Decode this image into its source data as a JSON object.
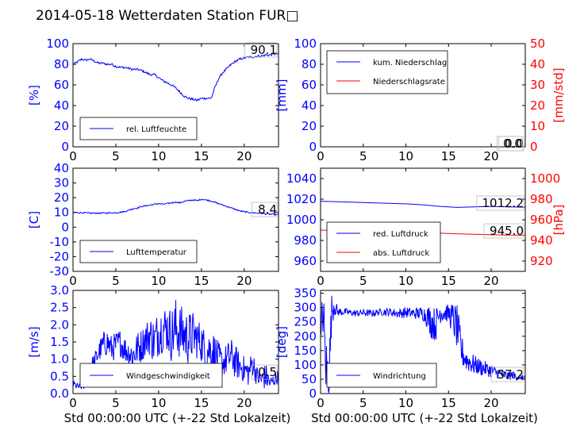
{
  "title": "2014-05-18 Wetterdaten Station FUR□",
  "colors": {
    "left_axis": "#0000ff",
    "right_axis": "#ff0000",
    "series_blue": "#0000ff",
    "series_red": "#ff0000"
  },
  "chart_data": [
    {
      "type": "line",
      "name": "humidity",
      "ylabel": "[%]",
      "ylim": [
        0,
        100
      ],
      "xlim": [
        0,
        24
      ],
      "xticks": [
        0,
        5,
        10,
        15,
        20
      ],
      "yticks": [
        0,
        20,
        40,
        60,
        80,
        100
      ],
      "legend": [
        "rel. Luftfeuchte"
      ],
      "legend_position": "lower-left",
      "value_label": "90.1",
      "series": [
        {
          "name": "rel. Luftfeuchte",
          "color": "blue",
          "x": [
            0,
            0.5,
            1,
            1.5,
            2,
            2.5,
            3,
            3.5,
            4,
            4.5,
            5,
            5.5,
            6,
            6.5,
            7,
            7.5,
            8,
            8.5,
            9,
            9.5,
            10,
            10.5,
            11,
            11.5,
            12,
            12.5,
            13,
            13.5,
            14,
            14.5,
            15,
            15.5,
            16,
            16.2,
            16.5,
            17,
            17.5,
            18,
            18.5,
            19,
            19.5,
            20,
            20.5,
            21,
            21.5,
            22,
            22.5,
            23,
            23.5,
            24
          ],
          "y": [
            80,
            82,
            85,
            84,
            85,
            83,
            81,
            81,
            80,
            80,
            78,
            77,
            77,
            76,
            75,
            75,
            74,
            72,
            70,
            70,
            67,
            64,
            62,
            60,
            57,
            53,
            49,
            47,
            46,
            45,
            47,
            47,
            47,
            48,
            56,
            66,
            72,
            76,
            80,
            83,
            85,
            86,
            87,
            87,
            88,
            88,
            89,
            89,
            90,
            90.1
          ]
        }
      ]
    },
    {
      "type": "line",
      "name": "precipitation",
      "ylabel": "[mm]",
      "ylabel_right": "[mm/std]",
      "ylim": [
        0,
        100
      ],
      "ylim_right": [
        0,
        50
      ],
      "xlim": [
        0,
        24
      ],
      "xticks": [
        0,
        5,
        10,
        15,
        20
      ],
      "yticks": [
        0,
        20,
        40,
        60,
        80,
        100
      ],
      "yticks_right": [
        0,
        10,
        20,
        30,
        40,
        50
      ],
      "legend": [
        "kum. Niederschlag",
        "Niederschlagsrate"
      ],
      "legend_position": "upper-left",
      "value_label": "0.0",
      "value_label_right": "0.0",
      "series": [
        {
          "name": "kum. Niederschlag",
          "color": "blue",
          "x": [
            0,
            24
          ],
          "y": [
            0,
            0
          ]
        },
        {
          "name": "Niederschlagsrate",
          "color": "red",
          "axis": "right",
          "x": [
            0,
            24
          ],
          "y": [
            0,
            0
          ]
        }
      ]
    },
    {
      "type": "line",
      "name": "temperature",
      "ylabel": "[C]",
      "ylim": [
        -30,
        40
      ],
      "xlim": [
        0,
        24
      ],
      "xticks": [
        0,
        5,
        10,
        15,
        20
      ],
      "yticks": [
        -30,
        -20,
        -10,
        0,
        10,
        20,
        30,
        40
      ],
      "legend": [
        "Lufttemperatur"
      ],
      "legend_position": "lower-left",
      "value_label": "8.4",
      "series": [
        {
          "name": "Lufttemperatur",
          "color": "blue",
          "x": [
            0,
            1,
            2,
            3,
            4,
            5,
            6,
            6.5,
            7,
            7.5,
            8,
            8.5,
            9,
            9.5,
            10,
            10.5,
            11,
            11.5,
            12,
            12.5,
            13,
            13.5,
            14,
            14.5,
            15,
            15.5,
            16,
            16.5,
            17,
            17.5,
            18,
            18.5,
            19,
            19.5,
            20,
            20.5,
            21,
            21.5,
            22,
            22.5,
            23,
            24
          ],
          "y": [
            10,
            9.8,
            9.5,
            9.5,
            9.6,
            9.8,
            10.5,
            11.5,
            12.5,
            13,
            14,
            14.5,
            15,
            15.5,
            16,
            15.5,
            16,
            16.5,
            17,
            16.5,
            17.5,
            18,
            18.5,
            18,
            19,
            18.5,
            18,
            17,
            16,
            15,
            14,
            13,
            12,
            11,
            10.5,
            10,
            9.8,
            9.6,
            9.4,
            9,
            8.8,
            8.4
          ]
        }
      ]
    },
    {
      "type": "line",
      "name": "pressure",
      "ylabel_right": "[hPa]",
      "ylim": [
        950,
        1050
      ],
      "ylim_right": [
        910,
        1010
      ],
      "xlim": [
        0,
        24
      ],
      "xticks": [
        0,
        5,
        10,
        15,
        20
      ],
      "yticks": [
        960,
        980,
        1000,
        1020,
        1040
      ],
      "yticks_right": [
        920,
        940,
        960,
        980,
        1000
      ],
      "legend": [
        "red. Luftdruck",
        "abs. Luftdruck"
      ],
      "legend_position": "lower-left",
      "value_label": "1012.2",
      "value_label_right": "945.0",
      "series": [
        {
          "name": "red. Luftdruck",
          "color": "blue",
          "x": [
            0,
            2,
            4,
            6,
            8,
            10,
            12,
            14,
            16,
            18,
            20,
            22,
            24
          ],
          "y": [
            1018,
            1017.5,
            1017,
            1016.5,
            1016,
            1015.5,
            1014.5,
            1013,
            1012,
            1012.5,
            1013,
            1012.5,
            1012.2
          ]
        },
        {
          "name": "abs. Luftdruck",
          "color": "red",
          "axis": "right",
          "x": [
            0,
            2,
            4,
            6,
            8,
            10,
            12,
            14,
            16,
            18,
            20,
            22,
            24
          ],
          "y": [
            950,
            949.5,
            949,
            948.8,
            948.5,
            948,
            947.5,
            947,
            946.5,
            946,
            945.5,
            945.2,
            945.0
          ]
        }
      ]
    },
    {
      "type": "line",
      "name": "windspeed",
      "xlabel": "Std 00:00:00 UTC (+-22 Std Lokalzeit)",
      "ylabel": "[m/s]",
      "ylim": [
        0,
        3.0
      ],
      "xlim": [
        0,
        24
      ],
      "xticks": [
        0,
        5,
        10,
        15,
        20
      ],
      "yticks": [
        0.0,
        0.5,
        1.0,
        1.5,
        2.0,
        2.5,
        3.0
      ],
      "legend": [
        "Windgeschwindigkeit"
      ],
      "legend_position": "lower-center",
      "value_label": "0.5",
      "series": [
        {
          "name": "Windgeschwindigkeit",
          "color": "blue",
          "noisy": true,
          "x": [
            0,
            0.5,
            1,
            1.5,
            2,
            2.5,
            3,
            3.5,
            4,
            4.5,
            5,
            5.5,
            6,
            6.5,
            7,
            7.5,
            8,
            8.5,
            9,
            9.5,
            10,
            10.5,
            11,
            11.5,
            12,
            12.5,
            13,
            13.5,
            14,
            14.5,
            15,
            15.5,
            16,
            16.5,
            17,
            17.5,
            18,
            18.5,
            19,
            19.5,
            20,
            20.5,
            21,
            21.5,
            22,
            22.5,
            23,
            23.5,
            24
          ],
          "y": [
            0.3,
            0.2,
            0.2,
            0.3,
            0.7,
            0.9,
            1.2,
            1.4,
            1.5,
            1.3,
            1.4,
            1.5,
            1.3,
            1.2,
            1.1,
            1.3,
            1.4,
            1.6,
            1.7,
            1.5,
            1.8,
            1.9,
            1.9,
            1.7,
            1.9,
            1.8,
            1.7,
            1.6,
            1.7,
            1.6,
            1.5,
            1.2,
            1.3,
            1.2,
            1.0,
            0.9,
            1.0,
            1.1,
            0.9,
            0.8,
            0.7,
            0.6,
            0.9,
            0.5,
            0.4,
            0.5,
            0.3,
            0.4,
            0.5
          ],
          "amp": [
            0.1,
            0.1,
            0.1,
            0.2,
            0.3,
            0.3,
            0.3,
            0.4,
            0.4,
            0.4,
            0.4,
            0.4,
            0.4,
            0.4,
            0.5,
            0.5,
            0.5,
            0.5,
            0.6,
            0.7,
            0.7,
            0.7,
            0.7,
            0.8,
            0.9,
            0.8,
            0.8,
            0.8,
            0.7,
            0.6,
            0.6,
            0.6,
            0.6,
            0.6,
            0.5,
            0.4,
            0.5,
            0.5,
            0.5,
            0.4,
            0.4,
            0.4,
            0.4,
            0.3,
            0.3,
            0.4,
            0.2,
            0.2,
            0.2
          ]
        }
      ]
    },
    {
      "type": "line",
      "name": "winddirection",
      "xlabel": "Std 00:00:00 UTC (+-22 Std Lokalzeit)",
      "ylabel": "[deg]",
      "ylim": [
        0,
        360
      ],
      "xlim": [
        0,
        24
      ],
      "xticks": [
        0,
        5,
        10,
        15,
        20
      ],
      "yticks": [
        0,
        50,
        100,
        150,
        200,
        250,
        300,
        350
      ],
      "legend": [
        "Windrichtung"
      ],
      "legend_position": "lower-left",
      "value_label": "57.2",
      "series": [
        {
          "name": "Windrichtung",
          "color": "blue",
          "noisy": true,
          "x": [
            0,
            0.3,
            0.6,
            1,
            1.3,
            1.6,
            2,
            3,
            4,
            5,
            6,
            7,
            8,
            9,
            10,
            11,
            12,
            12.5,
            13,
            13.5,
            14,
            15,
            15.5,
            16,
            16.5,
            17,
            17.5,
            18,
            18.5,
            19,
            19.5,
            20,
            20.5,
            21,
            21.5,
            22,
            22.5,
            23,
            23.5,
            24
          ],
          "y": [
            150,
            300,
            100,
            60,
            290,
            310,
            285,
            285,
            280,
            282,
            280,
            285,
            285,
            280,
            283,
            280,
            280,
            270,
            250,
            240,
            285,
            280,
            260,
            230,
            150,
            120,
            110,
            100,
            95,
            90,
            85,
            80,
            75,
            70,
            65,
            60,
            65,
            60,
            55,
            57.2
          ],
          "amp": [
            100,
            100,
            100,
            120,
            60,
            40,
            15,
            12,
            12,
            12,
            12,
            12,
            15,
            15,
            20,
            20,
            25,
            40,
            60,
            60,
            40,
            30,
            60,
            80,
            60,
            40,
            40,
            35,
            30,
            30,
            25,
            25,
            20,
            20,
            20,
            15,
            15,
            15,
            10,
            10
          ]
        }
      ]
    }
  ]
}
